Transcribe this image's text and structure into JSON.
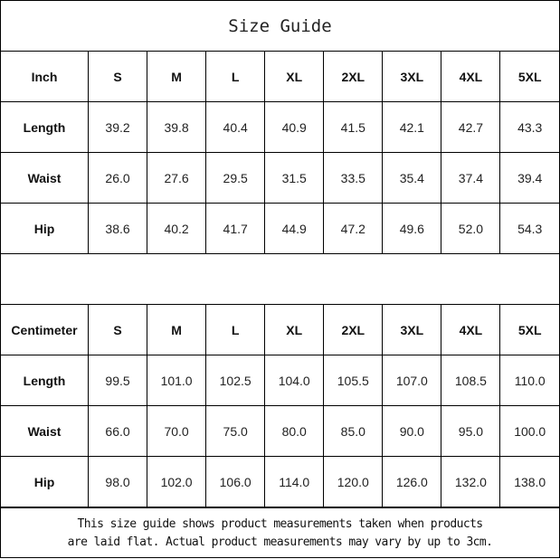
{
  "title": "Size Guide",
  "sizes": [
    "S",
    "M",
    "L",
    "XL",
    "2XL",
    "3XL",
    "4XL",
    "5XL"
  ],
  "tables": [
    {
      "unit": "Inch",
      "rows": [
        {
          "label": "Length",
          "values": [
            "39.2",
            "39.8",
            "40.4",
            "40.9",
            "41.5",
            "42.1",
            "42.7",
            "43.3"
          ]
        },
        {
          "label": "Waist",
          "values": [
            "26.0",
            "27.6",
            "29.5",
            "31.5",
            "33.5",
            "35.4",
            "37.4",
            "39.4"
          ]
        },
        {
          "label": "Hip",
          "values": [
            "38.6",
            "40.2",
            "41.7",
            "44.9",
            "47.2",
            "49.6",
            "52.0",
            "54.3"
          ]
        }
      ]
    },
    {
      "unit": "Centimeter",
      "rows": [
        {
          "label": "Length",
          "values": [
            "99.5",
            "101.0",
            "102.5",
            "104.0",
            "105.5",
            "107.0",
            "108.5",
            "110.0"
          ]
        },
        {
          "label": "Waist",
          "values": [
            "66.0",
            "70.0",
            "75.0",
            "80.0",
            "85.0",
            "90.0",
            "95.0",
            "100.0"
          ]
        },
        {
          "label": "Hip",
          "values": [
            "98.0",
            "102.0",
            "106.0",
            "114.0",
            "120.0",
            "126.0",
            "132.0",
            "138.0"
          ]
        }
      ]
    }
  ],
  "note": {
    "line1": "This size guide shows product measurements taken when products",
    "line2": "are laid flat. Actual product measurements may vary by up to 3cm."
  }
}
